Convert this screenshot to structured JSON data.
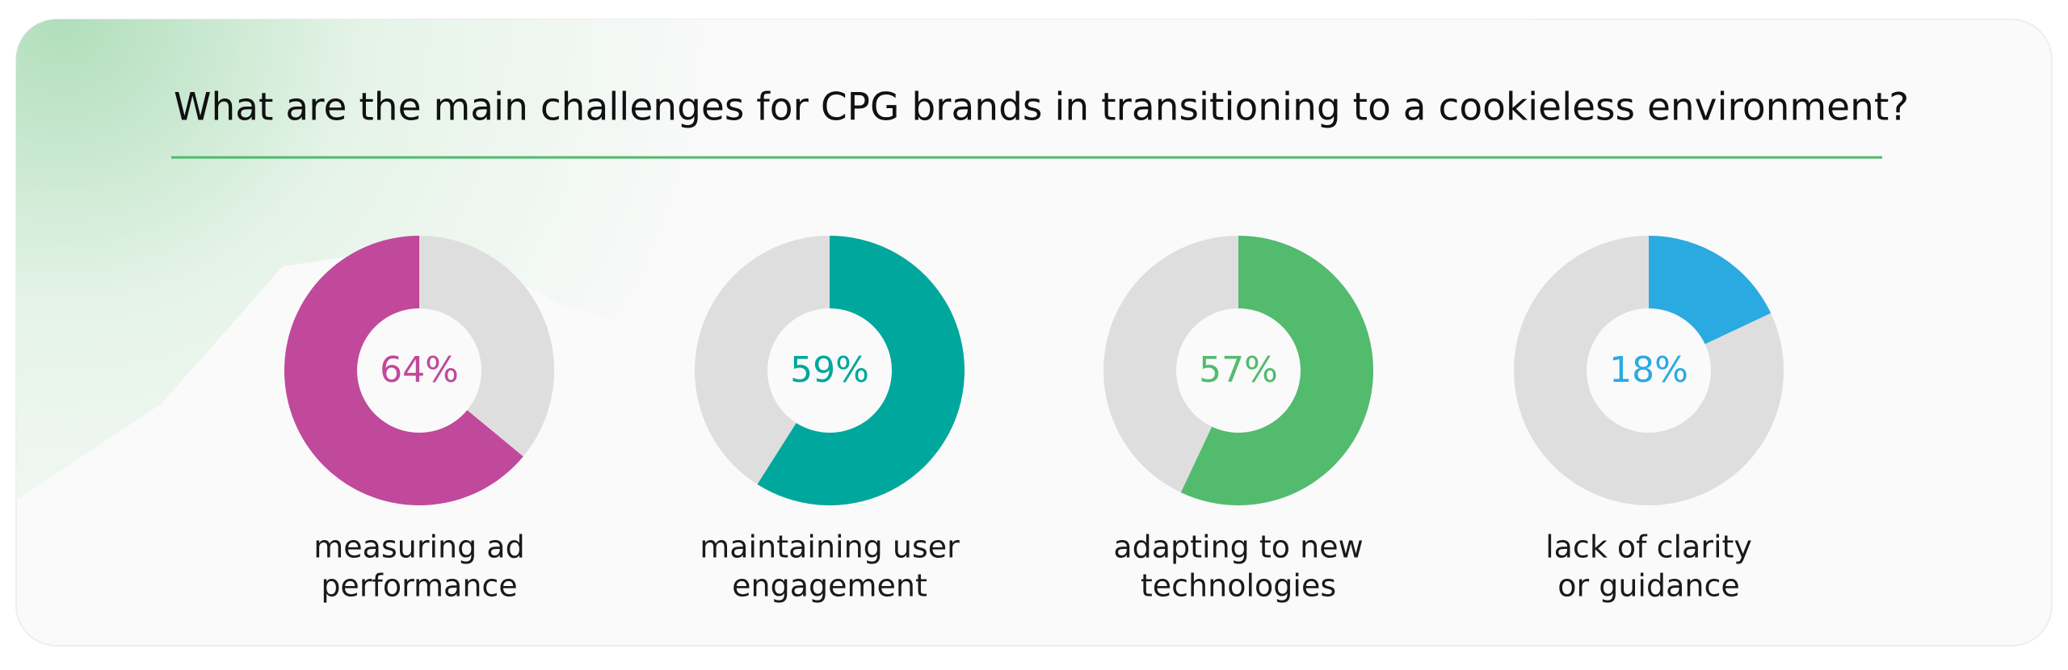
{
  "title": "What are the main challenges for CPG brands in transitioning to a cookieless environment?",
  "chart_data": [
    {
      "type": "donut",
      "values": [
        64
      ],
      "value_labels": [
        "64%"
      ],
      "color": "#c1499b",
      "clockwise": false,
      "label": [
        "measuring ad",
        "performance"
      ]
    },
    {
      "type": "donut",
      "values": [
        59
      ],
      "value_labels": [
        "59%"
      ],
      "color": "#00a79d",
      "clockwise": true,
      "label": [
        "maintaining user",
        "engagement"
      ]
    },
    {
      "type": "donut",
      "values": [
        57
      ],
      "value_labels": [
        "57%"
      ],
      "color": "#52bb6e",
      "clockwise": true,
      "label": [
        "adapting to new",
        "technologies"
      ]
    },
    {
      "type": "donut",
      "values": [
        18
      ],
      "value_labels": [
        "18%"
      ],
      "color": "#2baae2",
      "clockwise": true,
      "label": [
        "lack of clarity",
        "or guidance"
      ]
    }
  ]
}
